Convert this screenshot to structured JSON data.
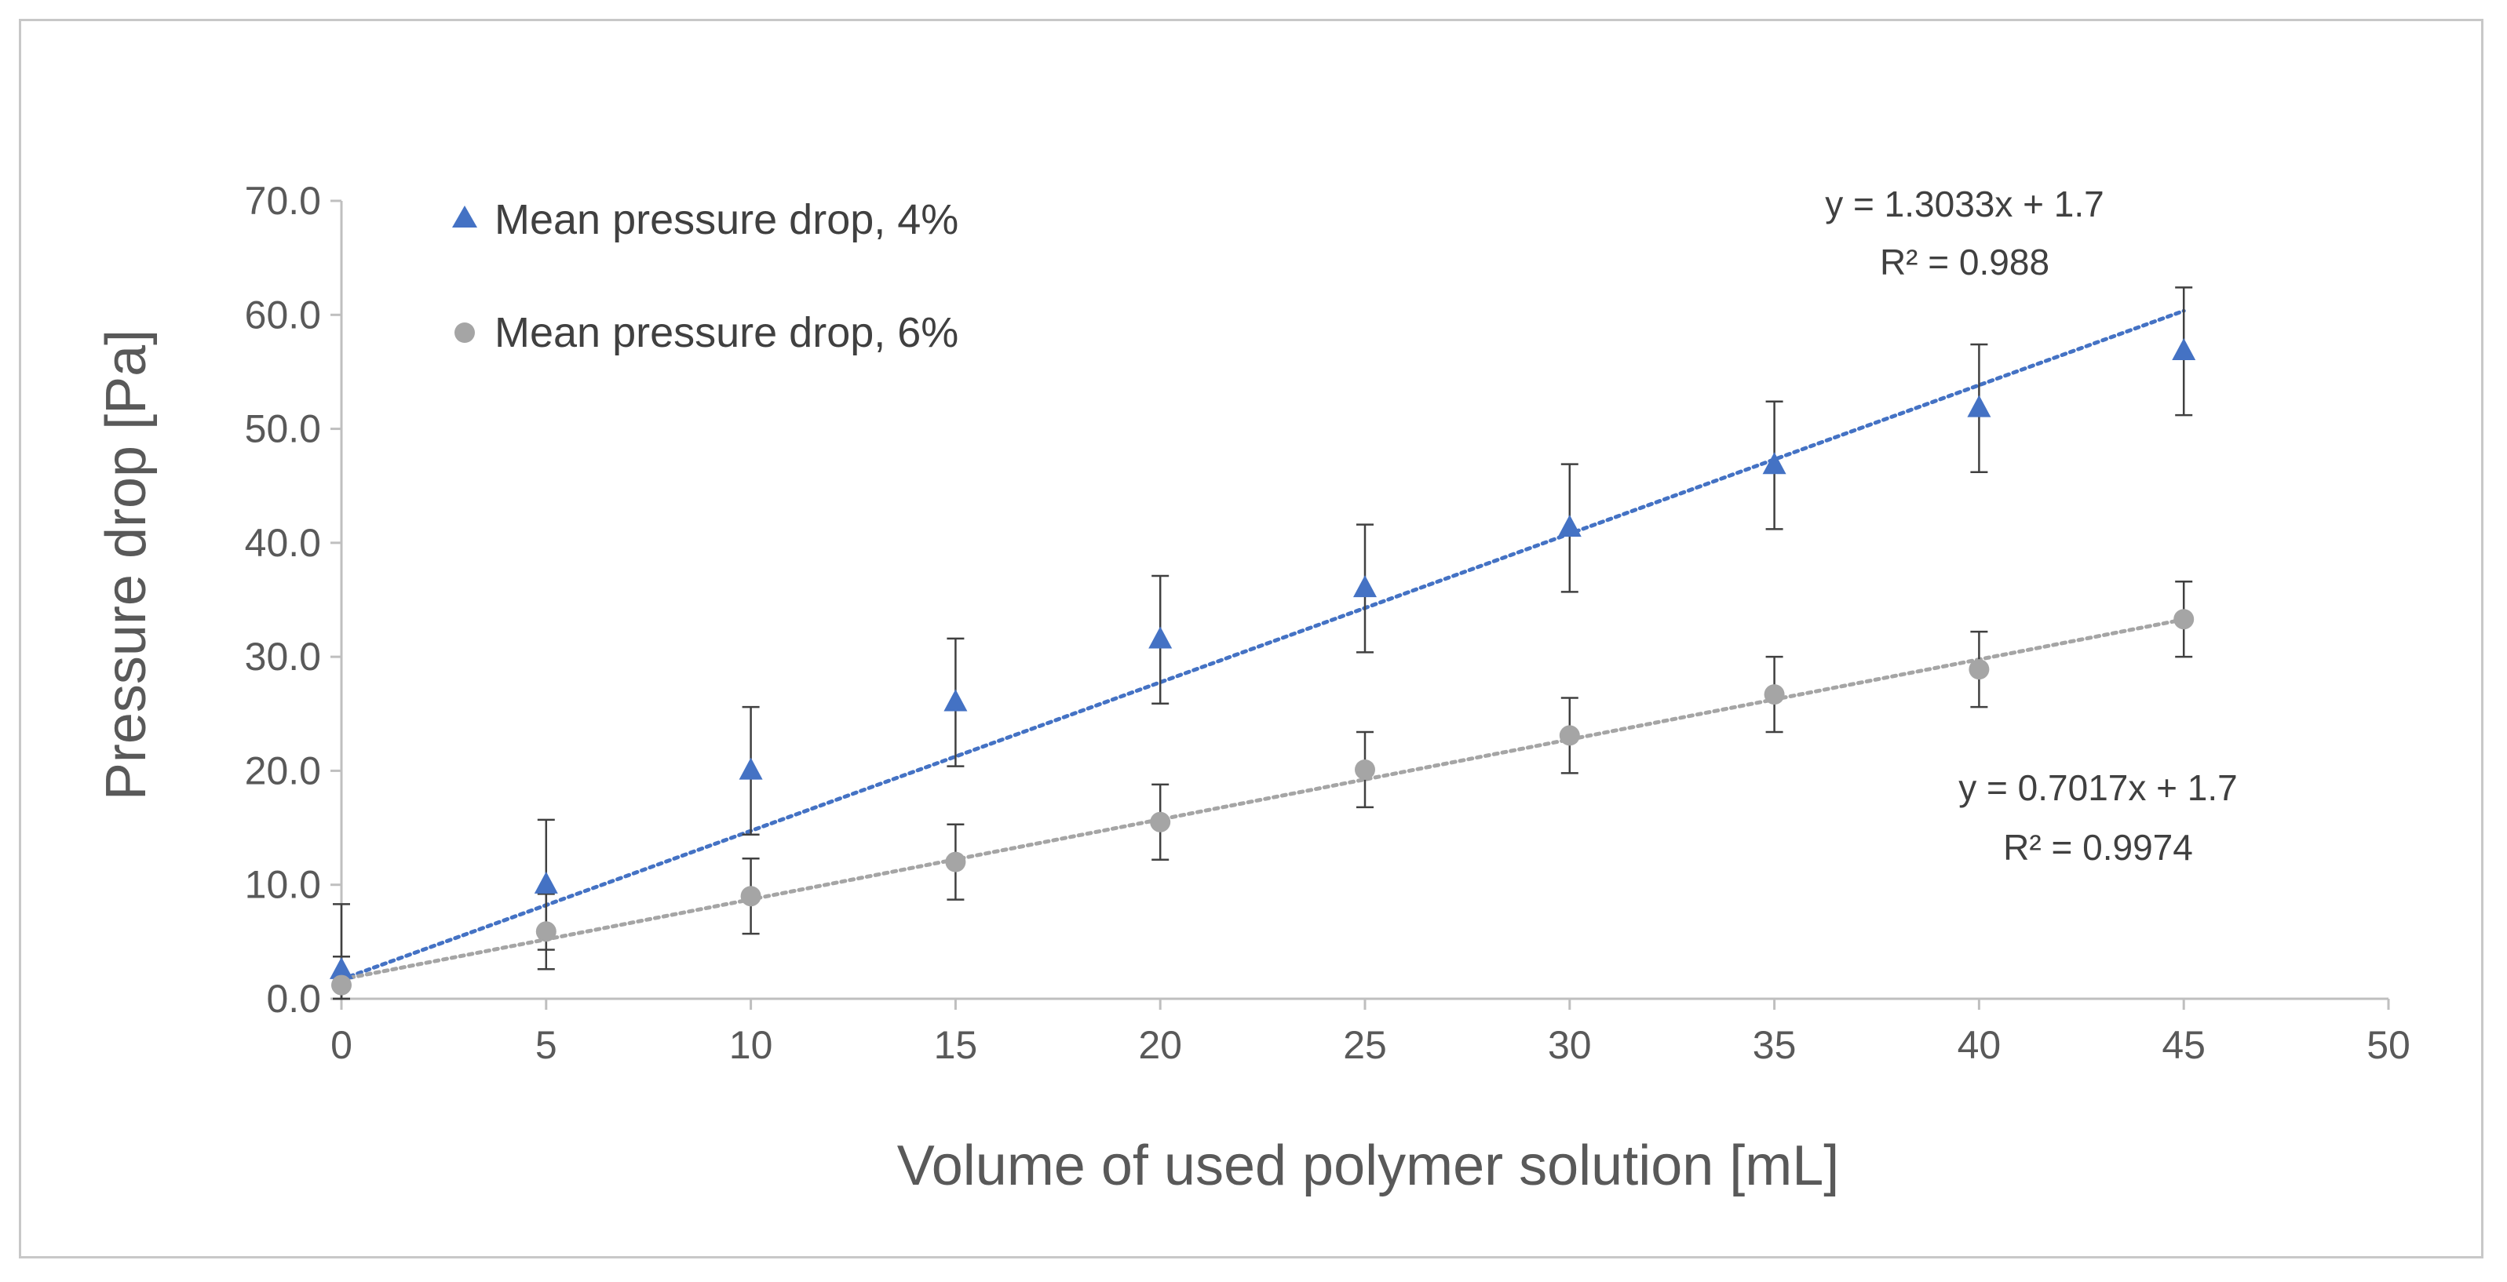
{
  "chart_data": {
    "type": "scatter",
    "title": "",
    "xlabel": "Volume of used polymer solution [mL]",
    "ylabel": "Pressure drop [Pa]",
    "xlim": [
      0,
      50
    ],
    "ylim": [
      0,
      70
    ],
    "xticks": [
      0,
      5,
      10,
      15,
      20,
      25,
      30,
      35,
      40,
      45,
      50
    ],
    "xtick_labels": [
      "0",
      "5",
      "10",
      "15",
      "20",
      "25",
      "30",
      "35",
      "40",
      "45",
      "50"
    ],
    "yticks": [
      0,
      10,
      20,
      30,
      40,
      50,
      60,
      70
    ],
    "ytick_labels": [
      "0.0",
      "10.0",
      "20.0",
      "30.0",
      "40.0",
      "50.0",
      "60.0",
      "70.0"
    ],
    "grid": false,
    "legend_position": "top-left",
    "series": [
      {
        "name": "Mean pressure drop, 4%",
        "marker": "triangle",
        "color": "#4472c4",
        "x": [
          0,
          5,
          10,
          15,
          20,
          25,
          30,
          35,
          40,
          45
        ],
        "y": [
          2.5,
          10.0,
          20.0,
          26.0,
          31.5,
          36.0,
          41.3,
          46.8,
          51.8,
          56.8
        ],
        "error": [
          5.8,
          5.7,
          5.6,
          5.6,
          5.6,
          5.6,
          5.6,
          5.6,
          5.6,
          5.6
        ],
        "trendline": {
          "slope": 1.3033,
          "intercept": 1.7,
          "x_range": [
            0,
            45
          ],
          "equation": "y = 1.3033x + 1.7",
          "r2": "R² = 0.988"
        }
      },
      {
        "name": "Mean pressure drop, 6%",
        "marker": "circle",
        "color": "#a5a5a5",
        "x": [
          0,
          5,
          10,
          15,
          20,
          25,
          30,
          35,
          40,
          45
        ],
        "y": [
          1.2,
          5.9,
          9.0,
          12.0,
          15.5,
          20.1,
          23.1,
          26.7,
          28.9,
          33.3
        ],
        "error": [
          2.5,
          3.3,
          3.3,
          3.3,
          3.3,
          3.3,
          3.3,
          3.3,
          3.3,
          3.3
        ],
        "trendline": {
          "slope": 0.7017,
          "intercept": 1.7,
          "x_range": [
            0,
            45
          ],
          "equation": "y = 0.7017x + 1.7",
          "r2": "R² = 0.9974"
        }
      }
    ]
  },
  "colors": {
    "axis": "#bfbfbf",
    "error_bar": "#404040",
    "text": "#595959"
  }
}
